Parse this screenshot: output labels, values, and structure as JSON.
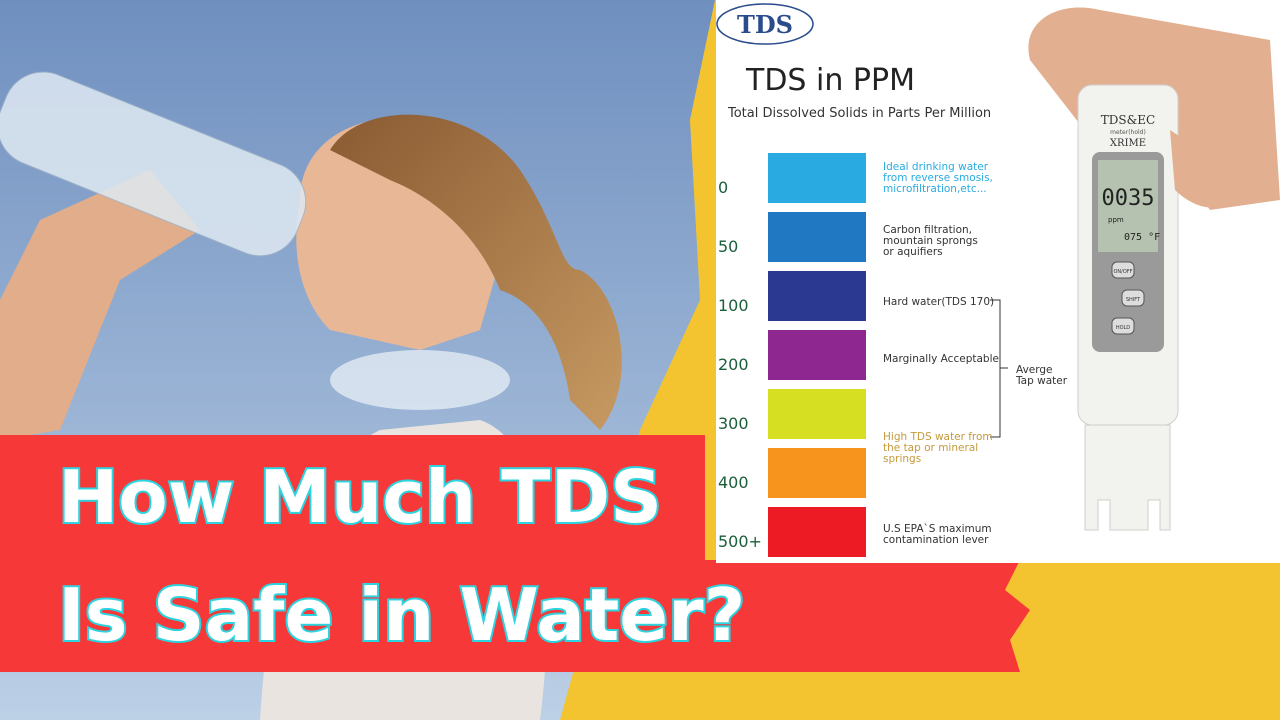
{
  "headline": {
    "lines": [
      "How Much TDS",
      "Is Safe in Water?"
    ]
  },
  "infographic": {
    "logo": "TDS",
    "title": "TDS in PPM",
    "subtitle": "Total Dissolved Solids in Parts Per Million",
    "levels": [
      {
        "label": "0",
        "color": "#29abe2"
      },
      {
        "label": "50",
        "color": "#1f78c1"
      },
      {
        "label": "100",
        "color": "#2b3990"
      },
      {
        "label": "200",
        "color": "#8e278f"
      },
      {
        "label": "300",
        "color": "#d7df23"
      },
      {
        "label": "400",
        "color": "#f7941d"
      },
      {
        "label": "500+",
        "color": "#ed1c24"
      }
    ],
    "notes": [
      {
        "lines": [
          "Ideal drinking water",
          "from reverse smosis,",
          "microfiltration,etc..."
        ],
        "color": "#29abe2"
      },
      {
        "lines": [
          "Carbon filtration,",
          "mountain sprongs",
          "or aquifiers"
        ],
        "color": "#333333"
      },
      {
        "lines": [
          "Hard water(TDS 170)"
        ],
        "color": "#333333"
      },
      {
        "lines": [
          "Marginally Acceptable"
        ],
        "color": "#333333"
      },
      {
        "lines": [
          "High TDS water from",
          "the tap or mineral",
          "springs"
        ],
        "color": "#c59a3c"
      },
      {
        "lines": [
          "U.S EPA`S maximum",
          "contamination lever"
        ],
        "color": "#333333"
      }
    ],
    "bracket": {
      "lines": [
        "Averge",
        "Tap water"
      ]
    }
  },
  "meter": {
    "brand": "TDS&EC",
    "model_note": "meter(hold)",
    "model": "XRIME",
    "reading": "0035",
    "unit": "ppm",
    "temperature": "075 °F",
    "buttons": [
      "ON/OFF",
      "SHIFT",
      "HOLD"
    ]
  }
}
